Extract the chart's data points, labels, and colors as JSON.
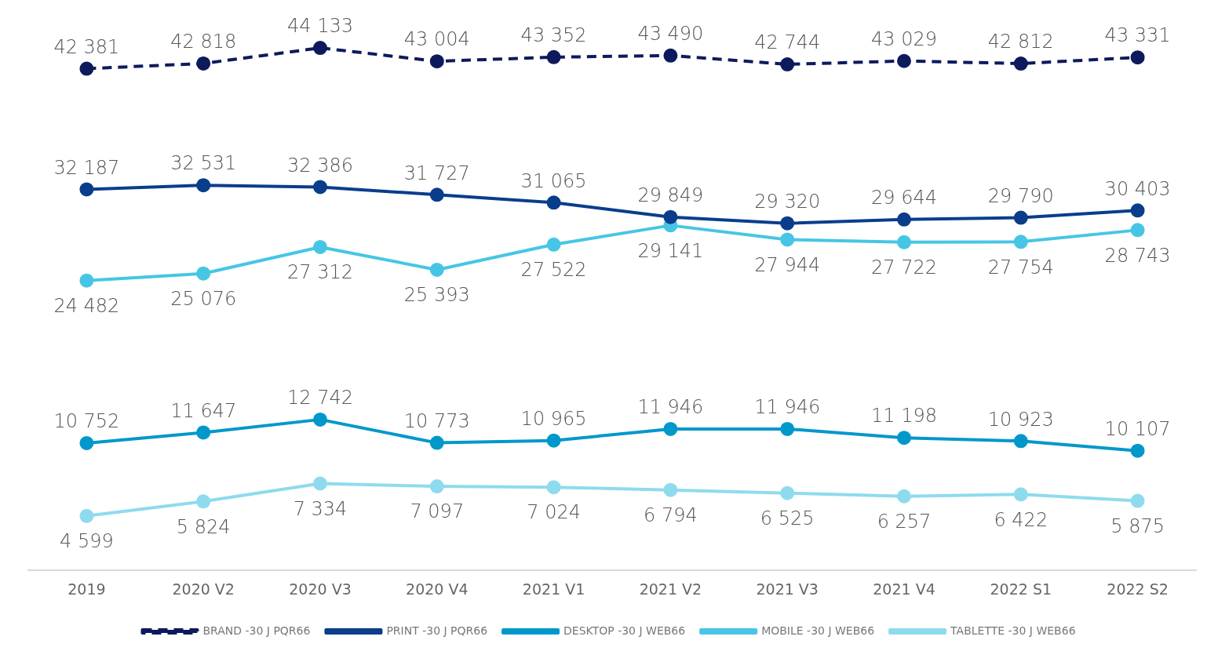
{
  "chart_data": {
    "type": "line",
    "categories": [
      "2019",
      "2020 V2",
      "2020 V3",
      "2020 V4",
      "2021 V1",
      "2021 V2",
      "2021 V3",
      "2021 V4",
      "2022 S1",
      "2022 S2"
    ],
    "series": [
      {
        "name": "BRAND -30 J PQR66",
        "color": "#0d1a5c",
        "line_style": "dashed",
        "values": [
          42381,
          42818,
          44133,
          43004,
          43352,
          43490,
          42744,
          43029,
          42812,
          43331
        ]
      },
      {
        "name": "PRINT -30 J PQR66",
        "color": "#0a3d8c",
        "line_style": "solid",
        "values": [
          32187,
          32531,
          32386,
          31727,
          31065,
          29849,
          29320,
          29644,
          29790,
          30403
        ]
      },
      {
        "name": "DESKTOP -30 J WEB66",
        "color": "#0098cb",
        "line_style": "solid",
        "values": [
          10752,
          11647,
          12742,
          10773,
          10965,
          11946,
          11946,
          11198,
          10923,
          10107
        ]
      },
      {
        "name": "MOBILE -30 J WEB66",
        "color": "#46c6e4",
        "line_style": "solid",
        "values": [
          24482,
          25076,
          27312,
          25393,
          27522,
          29141,
          27944,
          27722,
          27754,
          28743
        ]
      },
      {
        "name": "TABLETTE -30 J WEB66",
        "color": "#8edbee",
        "line_style": "solid",
        "values": [
          4599,
          5824,
          7334,
          7097,
          7024,
          6794,
          6525,
          6257,
          6422,
          5875
        ]
      }
    ],
    "relative": false,
    "data_labels": true,
    "legend": "bottom",
    "marker": "circle",
    "grid": false
  }
}
